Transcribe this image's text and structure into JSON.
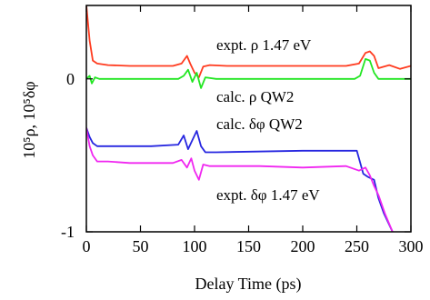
{
  "chart_data": {
    "type": "line",
    "xlabel": "Delay Time (ps)",
    "ylabel": "10⁵ρ, 10⁵δφ",
    "xlim": [
      0,
      300
    ],
    "ylim": [
      -1,
      0.48
    ],
    "x_ticks": [
      0,
      50,
      100,
      150,
      200,
      250,
      300
    ],
    "x_tick_labels": [
      "0",
      "50",
      "100",
      "150",
      "200",
      "250",
      "300"
    ],
    "y_ticks": [
      0,
      -1
    ],
    "y_tick_labels": [
      "0",
      "-1"
    ],
    "grid": false,
    "legend": "labels placed next to each curve",
    "series": [
      {
        "name": "expt. ρ 1.47 eV",
        "color": "#ff3b1f",
        "x": [
          0,
          3,
          6,
          10,
          20,
          40,
          60,
          80,
          88,
          93,
          96,
          100,
          104,
          108,
          114,
          130,
          160,
          200,
          240,
          252,
          258,
          262,
          266,
          270,
          280,
          290,
          300
        ],
        "y": [
          0.48,
          0.25,
          0.12,
          0.1,
          0.09,
          0.085,
          0.085,
          0.085,
          0.1,
          0.15,
          0.1,
          0.04,
          0.01,
          0.08,
          0.09,
          0.085,
          0.085,
          0.085,
          0.085,
          0.1,
          0.17,
          0.18,
          0.15,
          0.07,
          0.09,
          0.065,
          0.085
        ]
      },
      {
        "name": "calc. ρ QW2",
        "color": "#22e622",
        "x": [
          0,
          3,
          5,
          8,
          12,
          20,
          60,
          85,
          90,
          94,
          98,
          102,
          106,
          110,
          120,
          200,
          248,
          253,
          258,
          262,
          266,
          270,
          280,
          300
        ],
        "y": [
          0.0,
          0.02,
          -0.03,
          0.01,
          0.0,
          0.0,
          0.0,
          0.0,
          0.02,
          0.06,
          -0.02,
          0.04,
          -0.06,
          0.01,
          0.0,
          0.0,
          0.0,
          0.02,
          0.13,
          0.12,
          0.04,
          0.0,
          0.0,
          0.0
        ]
      },
      {
        "name": "calc. δφ QW2",
        "color": "#2626e0",
        "x": [
          0,
          3,
          6,
          10,
          20,
          60,
          85,
          90,
          94,
          98,
          102,
          106,
          110,
          120,
          200,
          250,
          256,
          260,
          266,
          270,
          275,
          283
        ],
        "y": [
          -0.32,
          -0.38,
          -0.42,
          -0.44,
          -0.44,
          -0.44,
          -0.43,
          -0.37,
          -0.46,
          -0.4,
          -0.34,
          -0.44,
          -0.48,
          -0.48,
          -0.47,
          -0.47,
          -0.62,
          -0.64,
          -0.66,
          -0.78,
          -0.88,
          -1.0
        ]
      },
      {
        "name": "expt. δφ 1.47 eV",
        "color": "#f026f0",
        "x": [
          0,
          3,
          6,
          10,
          20,
          40,
          60,
          80,
          88,
          93,
          97,
          100,
          104,
          108,
          114,
          130,
          160,
          200,
          240,
          252,
          258,
          262,
          266,
          270,
          276,
          283
        ],
        "y": [
          -0.32,
          -0.44,
          -0.5,
          -0.54,
          -0.54,
          -0.55,
          -0.55,
          -0.55,
          -0.53,
          -0.58,
          -0.52,
          -0.6,
          -0.66,
          -0.56,
          -0.57,
          -0.57,
          -0.57,
          -0.58,
          -0.57,
          -0.6,
          -0.58,
          -0.63,
          -0.7,
          -0.76,
          -0.88,
          -1.0
        ]
      }
    ]
  },
  "labels": {
    "expt_rho": "expt. ρ 1.47 eV",
    "calc_rho": "calc. ρ QW2",
    "calc_dphi": "calc. δφ QW2",
    "expt_dphi": "expt. δφ 1.47 eV"
  }
}
